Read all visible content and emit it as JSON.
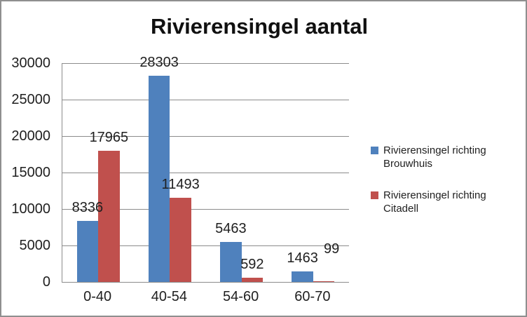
{
  "window": {
    "background": "#ffffff",
    "border_color": "#8f8f8f"
  },
  "chart_data": {
    "type": "bar",
    "title": "Rivierensingel aantal",
    "categories": [
      "0-40",
      "40-54",
      "54-60",
      "60-70"
    ],
    "series": [
      {
        "name": "Rivierensingel richting Brouwhuis",
        "color": "#4f81bd",
        "values": [
          8336,
          28303,
          5463,
          1463
        ]
      },
      {
        "name": "Rivierensingel richting Citadell",
        "color": "#c0504d",
        "values": [
          17965,
          11493,
          592,
          99
        ]
      }
    ],
    "xlabel": "",
    "ylabel": "",
    "ylim": [
      0,
      30000
    ],
    "ytick_step": 5000,
    "yticks": [
      0,
      5000,
      10000,
      15000,
      20000,
      25000,
      30000
    ],
    "grid": "horizontal",
    "gridline_color": "#8c8c8c",
    "legend_position": "right",
    "data_labels": true,
    "label_adjustments": [
      {
        "series": 1,
        "index": 3,
        "dx": 11,
        "dy": -27
      }
    ]
  }
}
